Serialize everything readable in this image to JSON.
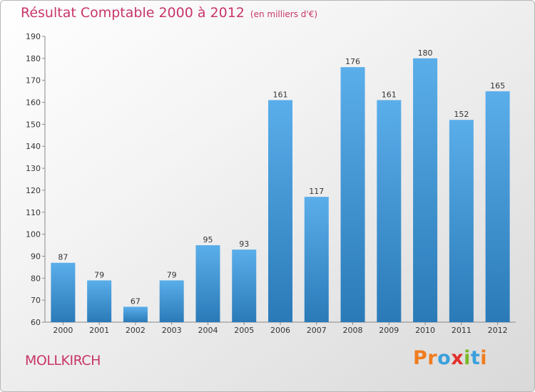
{
  "header": {
    "title": "Résultat Comptable 2000 à 2012",
    "subtitle": "(en milliers d'€)"
  },
  "footer": {
    "town": "MOLLKIRCH",
    "logo_letters": [
      "P",
      "r",
      "o",
      "x",
      "i",
      "t",
      "i"
    ]
  },
  "colors": {
    "title": "#c8356a",
    "bar_top": "#5aaeea",
    "bar_bottom": "#2a7ab8",
    "logo": [
      "#f07c1f",
      "#f07c1f",
      "#3aa0dc",
      "#e2312d",
      "#7ab829",
      "#3aa0dc",
      "#f07c1f"
    ]
  },
  "chart_data": {
    "type": "bar",
    "title": "Résultat Comptable 2000 à 2012",
    "subtitle": "(en milliers d'€)",
    "categories": [
      "2000",
      "2001",
      "2002",
      "2003",
      "2004",
      "2005",
      "2006",
      "2007",
      "2008",
      "2009",
      "2010",
      "2011",
      "2012"
    ],
    "values": [
      87,
      79,
      67,
      79,
      95,
      93,
      161,
      117,
      176,
      161,
      180,
      152,
      165
    ],
    "xlabel": "",
    "ylabel": "",
    "ylim": [
      60,
      190
    ],
    "yticks": [
      60,
      70,
      80,
      90,
      100,
      110,
      120,
      130,
      140,
      150,
      160,
      170,
      180,
      190
    ],
    "grid": false,
    "legend": "none"
  }
}
